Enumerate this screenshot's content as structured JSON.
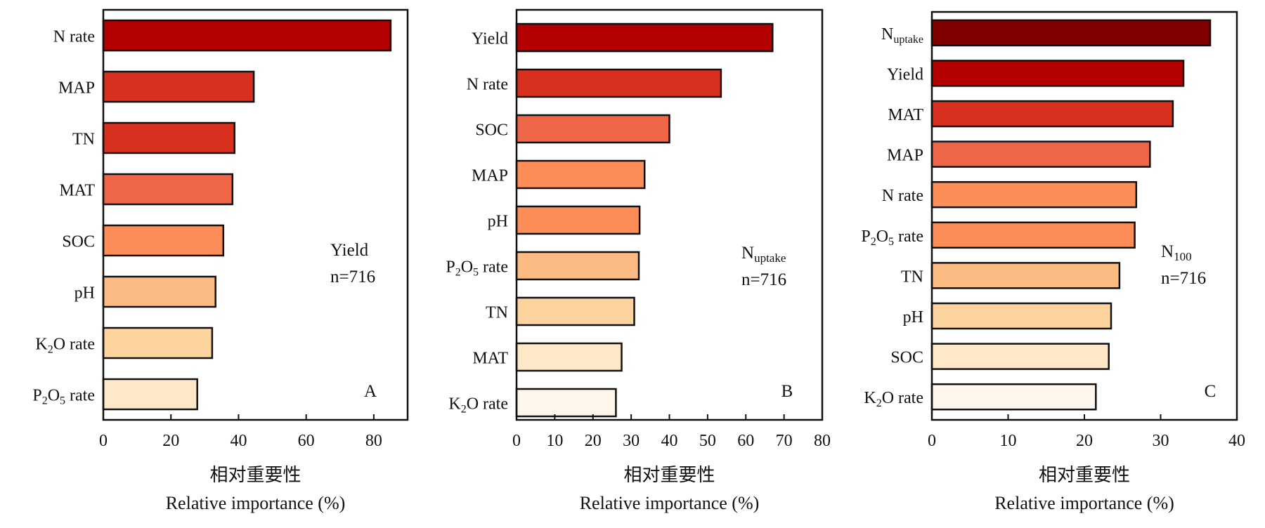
{
  "chart_data": [
    {
      "type": "bar",
      "orientation": "horizontal",
      "panel_label": "A",
      "annotation": [
        "Yield",
        "n=716"
      ],
      "categories": [
        "N rate",
        "MAP",
        "TN",
        "MAT",
        "SOC",
        "pH",
        "K2O rate",
        "P2O5 rate"
      ],
      "values": [
        85.0,
        44.5,
        38.8,
        38.2,
        35.5,
        33.2,
        32.2,
        27.8
      ],
      "colors": [
        "#b30000",
        "#d7301f",
        "#d7301f",
        "#ef6548",
        "#fc8d59",
        "#fdbb84",
        "#fdd49e",
        "#fee8c8"
      ],
      "xlim": [
        0,
        90
      ],
      "xticks": [
        0,
        20,
        40,
        60,
        80
      ],
      "xlabel_cn": "相对重要性",
      "xlabel": "Relative importance (%)"
    },
    {
      "type": "bar",
      "orientation": "horizontal",
      "panel_label": "B",
      "annotation": [
        "Nuptake",
        "n=716"
      ],
      "categories": [
        "Yield",
        "N rate",
        "SOC",
        "MAP",
        "pH",
        "P2O5 rate",
        "TN",
        "MAT",
        "K2O rate"
      ],
      "values": [
        67.0,
        53.5,
        40.0,
        33.5,
        32.2,
        32.0,
        30.8,
        27.5,
        26.0
      ],
      "colors": [
        "#b30000",
        "#d7301f",
        "#ef6548",
        "#fc8d59",
        "#fc8d59",
        "#fdbb84",
        "#fdd49e",
        "#fee8c8",
        "#fff7ec"
      ],
      "xlim": [
        0,
        80
      ],
      "xticks": [
        0,
        10,
        20,
        30,
        40,
        50,
        60,
        70,
        80
      ],
      "xlabel_cn": "相对重要性",
      "xlabel": "Relative importance (%)"
    },
    {
      "type": "bar",
      "orientation": "horizontal",
      "panel_label": "C",
      "annotation": [
        "N100",
        "n=716"
      ],
      "categories": [
        "Nuptake",
        "Yield",
        "MAT",
        "MAP",
        "N rate",
        "P2O5 rate",
        "TN",
        "pH",
        "SOC",
        "K2O rate"
      ],
      "values": [
        36.5,
        33.0,
        31.6,
        28.6,
        26.8,
        26.6,
        24.6,
        23.5,
        23.2,
        21.5
      ],
      "colors": [
        "#7f0000",
        "#b30000",
        "#d7301f",
        "#ef6548",
        "#fc8d59",
        "#fc8d59",
        "#fdbb84",
        "#fdd49e",
        "#fee8c8",
        "#fff7ec"
      ],
      "xlim": [
        0,
        40
      ],
      "xticks": [
        0,
        10,
        20,
        30,
        40
      ],
      "xlabel_cn": "相对重要性",
      "xlabel": "Relative importance (%)"
    }
  ]
}
